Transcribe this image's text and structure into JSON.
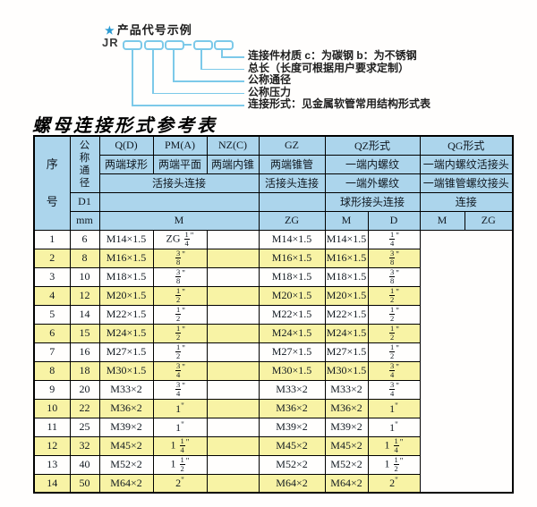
{
  "colors": {
    "header_bg": "#acd5ec",
    "alt_row": "#f8f3a5",
    "line_color": "#7cc9e9",
    "star_color": "#2a9ad2",
    "border_color": "#000000"
  },
  "diagram": {
    "star": "★",
    "title": "产品代号示例",
    "prefix": "JR",
    "labels": [
      "连接件材质  c：为碳钢  b：为不锈钢",
      "总长（长度可根据用户要求定制）",
      "公称通径",
      "公称压力",
      "连接形式：见金属软管常用结构形式表"
    ]
  },
  "table": {
    "title": "螺母连接形式参考表",
    "header": {
      "serial": "序号",
      "dn": "公称通径",
      "d1": "D1",
      "mm": "mm",
      "groups": [
        "Q(D)",
        "PM(A)",
        "NZ(C)",
        "GZ",
        "QZ形式",
        "QG形式"
      ],
      "ends": [
        "两端球形",
        "两端平面",
        "两端内锥",
        "两端锥管",
        "一端内螺纹",
        "一端内螺纹活接头"
      ],
      "joins": [
        "活接头连接",
        "活接头连接",
        "一端外螺纹",
        "一端锥管螺纹接头"
      ],
      "connects": [
        "球形接头连接",
        "连接"
      ],
      "units": [
        "M",
        "ZG",
        "M",
        "D",
        "M",
        "ZG"
      ]
    },
    "rows": [
      [
        "1",
        "6",
        "M14×1.5",
        "ZG 1/4\"",
        "",
        "M14×1.5",
        "M14×1.5",
        "1/4\""
      ],
      [
        "2",
        "8",
        "M16×1.5",
        "3/8\"",
        "",
        "M16×1.5",
        "M16×1.5",
        "3/8\""
      ],
      [
        "3",
        "10",
        "M18×1.5",
        "3/8\"",
        "",
        "M18×1.5",
        "M18×1.5",
        "3/8\""
      ],
      [
        "4",
        "12",
        "M20×1.5",
        "1/2\"",
        "",
        "M20×1.5",
        "M20×1.5",
        "1/2\""
      ],
      [
        "5",
        "14",
        "M22×1.5",
        "1/2\"",
        "",
        "M22×1.5",
        "M22×1.5",
        "1/2\""
      ],
      [
        "6",
        "15",
        "M24×1.5",
        "1/2\"",
        "",
        "M24×1.5",
        "M24×1.5",
        "1/2\""
      ],
      [
        "7",
        "16",
        "M27×1.5",
        "1/2\"",
        "",
        "M27×1.5",
        "M27×1.5",
        "1/2\""
      ],
      [
        "8",
        "18",
        "M30×1.5",
        "3/4\"",
        "",
        "M30×1.5",
        "M30×1.5",
        "3/4\""
      ],
      [
        "9",
        "20",
        "M33×2",
        "3/4\"",
        "",
        "M33×2",
        "M33×2",
        "3/4\""
      ],
      [
        "10",
        "22",
        "M36×2",
        "1\"",
        "",
        "M36×2",
        "M36×2",
        "1\""
      ],
      [
        "11",
        "25",
        "M39×2",
        "1\"",
        "",
        "M39×2",
        "M39×2",
        "1\""
      ],
      [
        "12",
        "32",
        "M45×2",
        "1 1/4\"",
        "",
        "M45×2",
        "M45×2",
        "1 1/4\""
      ],
      [
        "13",
        "40",
        "M52×2",
        "1 1/2\"",
        "",
        "M52×2",
        "M52×2",
        "1 1/2\""
      ],
      [
        "14",
        "50",
        "M64×2",
        "2\"",
        "",
        "M64×2",
        "M64×2",
        "2\""
      ]
    ]
  }
}
